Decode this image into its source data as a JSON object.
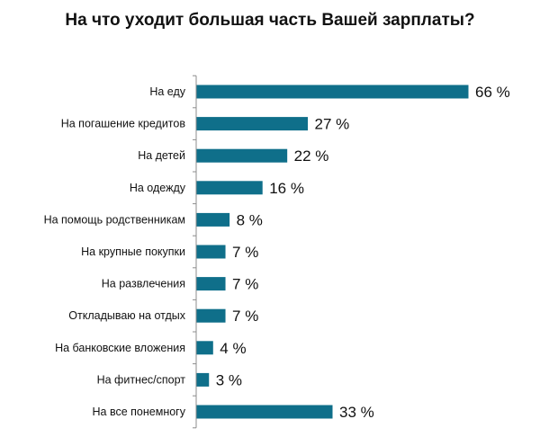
{
  "title": "На что уходит большая часть Вашей зарплаты?",
  "colors": {
    "bar": "#0f6f8a",
    "axis": "#8c8c8c",
    "text": "#111111",
    "background": "#ffffff"
  },
  "chart_data": {
    "type": "bar",
    "orientation": "horizontal",
    "title": "На что уходит большая часть Вашей зарплаты?",
    "categories": [
      "На еду",
      "На погашение кредитов",
      "На детей",
      "На одежду",
      "На помощь родственникам",
      "На крупные покупки",
      "На развлечения",
      "Откладываю на отдых",
      "На банковские вложения",
      "На фитнес/спорт",
      "На все понемногу"
    ],
    "values": [
      66,
      27,
      22,
      16,
      8,
      7,
      7,
      7,
      4,
      3,
      33
    ],
    "value_labels": [
      "66 %",
      "27 %",
      "22 %",
      "16 %",
      "8 %",
      "7 %",
      "7 %",
      "7 %",
      "4 %",
      "3 %",
      "33 %"
    ],
    "xlim": [
      0,
      66
    ],
    "grid": false,
    "legend": "none"
  }
}
